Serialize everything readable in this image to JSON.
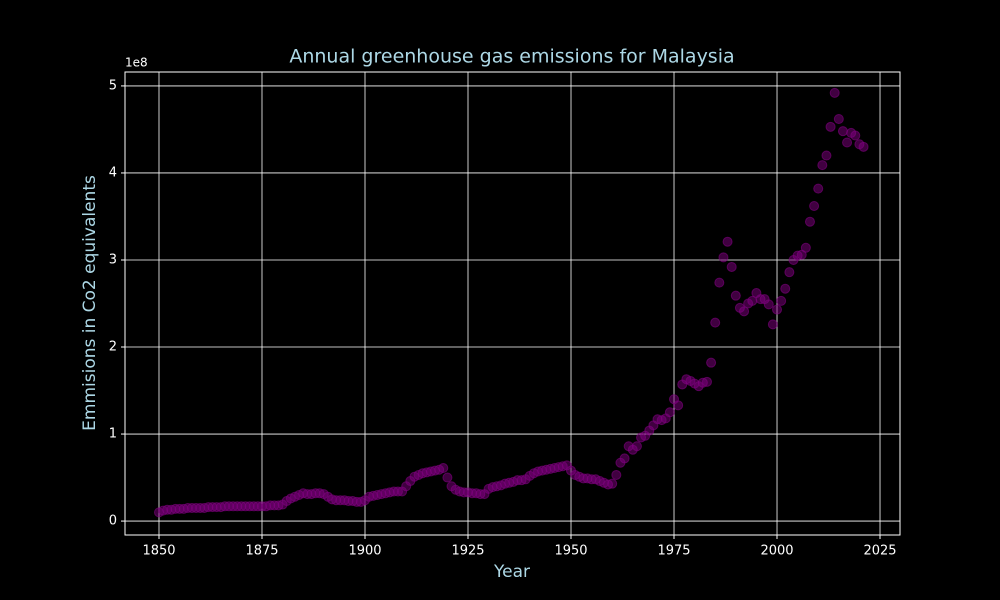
{
  "chart_data": {
    "type": "scatter",
    "title": "Annual greenhouse gas emissions for Malaysia",
    "xlabel": "Year",
    "ylabel": "Emmisions in Co2 equivalents",
    "y_offset_label": "1e8",
    "x": [
      1850,
      1851,
      1852,
      1853,
      1854,
      1855,
      1856,
      1857,
      1858,
      1859,
      1860,
      1861,
      1862,
      1863,
      1864,
      1865,
      1866,
      1867,
      1868,
      1869,
      1870,
      1871,
      1872,
      1873,
      1874,
      1875,
      1876,
      1877,
      1878,
      1879,
      1880,
      1881,
      1882,
      1883,
      1884,
      1885,
      1886,
      1887,
      1888,
      1889,
      1890,
      1891,
      1892,
      1893,
      1894,
      1895,
      1896,
      1897,
      1898,
      1899,
      1900,
      1901,
      1902,
      1903,
      1904,
      1905,
      1906,
      1907,
      1908,
      1909,
      1910,
      1911,
      1912,
      1913,
      1914,
      1915,
      1916,
      1917,
      1918,
      1919,
      1920,
      1921,
      1922,
      1923,
      1924,
      1925,
      1926,
      1927,
      1928,
      1929,
      1930,
      1931,
      1932,
      1933,
      1934,
      1935,
      1936,
      1937,
      1938,
      1939,
      1940,
      1941,
      1942,
      1943,
      1944,
      1945,
      1946,
      1947,
      1948,
      1949,
      1950,
      1951,
      1952,
      1953,
      1954,
      1955,
      1956,
      1957,
      1958,
      1959,
      1960,
      1961,
      1962,
      1963,
      1964,
      1965,
      1966,
      1967,
      1968,
      1969,
      1970,
      1971,
      1972,
      1973,
      1974,
      1975,
      1976,
      1977,
      1978,
      1979,
      1980,
      1981,
      1982,
      1983,
      1984,
      1985,
      1986,
      1987,
      1988,
      1989,
      1990,
      1991,
      1992,
      1993,
      1994,
      1995,
      1996,
      1997,
      1998,
      1999,
      2000,
      2001,
      2002,
      2003,
      2004,
      2005,
      2006,
      2007,
      2008,
      2009,
      2010,
      2011,
      2012,
      2013,
      2014,
      2015,
      2016,
      2017,
      2018,
      2019,
      2020,
      2021
    ],
    "values": [
      0.1,
      0.12,
      0.13,
      0.13,
      0.14,
      0.14,
      0.14,
      0.15,
      0.15,
      0.15,
      0.15,
      0.15,
      0.16,
      0.16,
      0.16,
      0.16,
      0.17,
      0.17,
      0.17,
      0.17,
      0.17,
      0.17,
      0.17,
      0.17,
      0.17,
      0.17,
      0.17,
      0.18,
      0.18,
      0.18,
      0.19,
      0.23,
      0.26,
      0.28,
      0.3,
      0.32,
      0.31,
      0.31,
      0.32,
      0.32,
      0.31,
      0.28,
      0.25,
      0.24,
      0.24,
      0.24,
      0.23,
      0.23,
      0.22,
      0.22,
      0.24,
      0.28,
      0.29,
      0.3,
      0.31,
      0.32,
      0.33,
      0.34,
      0.34,
      0.34,
      0.4,
      0.46,
      0.51,
      0.53,
      0.55,
      0.56,
      0.57,
      0.58,
      0.59,
      0.61,
      0.5,
      0.4,
      0.36,
      0.34,
      0.33,
      0.33,
      0.32,
      0.32,
      0.31,
      0.31,
      0.37,
      0.39,
      0.4,
      0.41,
      0.43,
      0.44,
      0.45,
      0.47,
      0.47,
      0.48,
      0.52,
      0.55,
      0.57,
      0.58,
      0.59,
      0.6,
      0.61,
      0.62,
      0.63,
      0.64,
      0.58,
      0.53,
      0.51,
      0.49,
      0.49,
      0.48,
      0.48,
      0.46,
      0.44,
      0.42,
      0.43,
      0.53,
      0.67,
      0.72,
      0.86,
      0.82,
      0.86,
      0.96,
      0.98,
      1.04,
      1.1,
      1.17,
      1.16,
      1.18,
      1.25,
      1.4,
      1.33,
      1.57,
      1.63,
      1.61,
      1.58,
      1.55,
      1.59,
      1.6,
      1.82,
      2.28,
      2.74,
      3.03,
      3.21,
      2.92,
      2.59,
      2.45,
      2.41,
      2.5,
      2.53,
      2.62,
      2.55,
      2.55,
      2.49,
      2.26,
      2.43,
      2.53,
      2.67,
      2.86,
      3.0,
      3.05,
      3.06,
      3.14,
      3.44,
      3.62,
      3.82,
      4.09,
      4.2,
      4.53,
      4.92,
      4.62,
      4.48,
      4.35,
      4.46,
      4.43,
      4.33,
      4.3
    ],
    "color": "#800080",
    "xlim": [
      1841.75,
      2029.85
    ],
    "xticks": [
      1850,
      1875,
      1900,
      1925,
      1950,
      1975,
      2000,
      2025
    ],
    "ylim": [
      -0.16,
      5.16
    ],
    "yticks": [
      0,
      1,
      2,
      3,
      4,
      5
    ],
    "grid": true
  }
}
